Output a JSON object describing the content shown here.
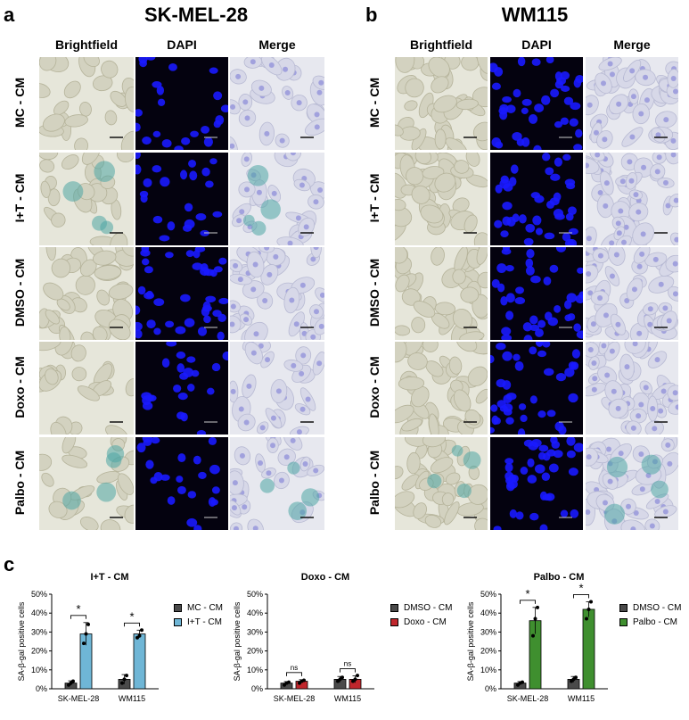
{
  "panels": [
    {
      "letter": "a",
      "title": "SK-MEL-28",
      "columns": [
        "Brightfield",
        "DAPI",
        "Merge"
      ],
      "rows": [
        "MC - CM",
        "I+T - CM",
        "DMSO - CM",
        "Doxo - CM",
        "Palbo - CM"
      ]
    },
    {
      "letter": "b",
      "title": "WM115",
      "columns": [
        "Brightfield",
        "DAPI",
        "Merge"
      ],
      "rows": [
        "MC - CM",
        "I+T - CM",
        "DMSO - CM",
        "Doxo - CM",
        "Palbo - CM"
      ]
    }
  ],
  "panel_c_letter": "c",
  "colors": {
    "control_dark": "#4a4a4a",
    "it_blue": "#6fb6d6",
    "doxo_red": "#c0262c",
    "palbo_green": "#3f8f2f",
    "brightfield_bg": "#e6e6da",
    "dapi_bg": "#04020f",
    "dapi_nucleus": "#1a1aff",
    "merge_bg": "#e7e8ef",
    "senescence_stain": "#4fa6a4"
  },
  "chart_data": [
    {
      "type": "bar",
      "title": "I+T - CM",
      "ylabel": "SA-β-gal positive cells",
      "xlabel": "",
      "ylim": [
        0,
        50
      ],
      "yticks": [
        "0%",
        "10%",
        "20%",
        "30%",
        "40%",
        "50%"
      ],
      "categories": [
        "SK-MEL-28",
        "WM115"
      ],
      "series": [
        {
          "name": "MC - CM",
          "values": [
            3,
            5
          ],
          "errors": [
            1.2,
            2.5
          ],
          "points": [
            [
              2,
              3,
              4
            ],
            [
              3,
              5,
              7
            ]
          ]
        },
        {
          "name": "I+T - CM",
          "values": [
            29,
            29
          ],
          "errors": [
            6,
            2
          ],
          "points": [
            [
              24,
              29,
              34
            ],
            [
              27,
              28,
              31
            ]
          ]
        }
      ],
      "significance": [
        "*",
        "*"
      ],
      "legend_position": "right"
    },
    {
      "type": "bar",
      "title": "Doxo - CM",
      "ylabel": "SA-β-gal positive cells",
      "xlabel": "",
      "ylim": [
        0,
        50
      ],
      "yticks": [
        "0%",
        "10%",
        "20%",
        "30%",
        "40%",
        "50%"
      ],
      "categories": [
        "SK-MEL-28",
        "WM115"
      ],
      "series": [
        {
          "name": "DMSO - CM",
          "values": [
            3,
            5
          ],
          "errors": [
            0.8,
            1.5
          ],
          "points": [
            [
              2,
              3,
              3.5
            ],
            [
              4,
              5,
              6
            ]
          ]
        },
        {
          "name": "Doxo - CM",
          "values": [
            4,
            5
          ],
          "errors": [
            0.8,
            1.8
          ],
          "points": [
            [
              3,
              4,
              4.5
            ],
            [
              4,
              5,
              7
            ]
          ]
        }
      ],
      "significance": [
        "ns",
        "ns"
      ],
      "legend_position": "right"
    },
    {
      "type": "bar",
      "title": "Palbo - CM",
      "ylabel": "SA-β-gal positive cells",
      "xlabel": "",
      "ylim": [
        0,
        50
      ],
      "yticks": [
        "0%",
        "10%",
        "20%",
        "30%",
        "40%",
        "50%"
      ],
      "categories": [
        "SK-MEL-28",
        "WM115"
      ],
      "series": [
        {
          "name": "DMSO - CM",
          "values": [
            3,
            5
          ],
          "errors": [
            0.8,
            1.5
          ],
          "points": [
            [
              2,
              3,
              3.5
            ],
            [
              4,
              5,
              6
            ]
          ]
        },
        {
          "name": "Palbo - CM",
          "values": [
            36,
            42
          ],
          "errors": [
            7,
            4
          ],
          "points": [
            [
              28,
              37,
              43
            ],
            [
              37,
              42,
              46
            ]
          ]
        }
      ],
      "significance": [
        "*",
        "*"
      ],
      "legend_position": "right"
    }
  ]
}
